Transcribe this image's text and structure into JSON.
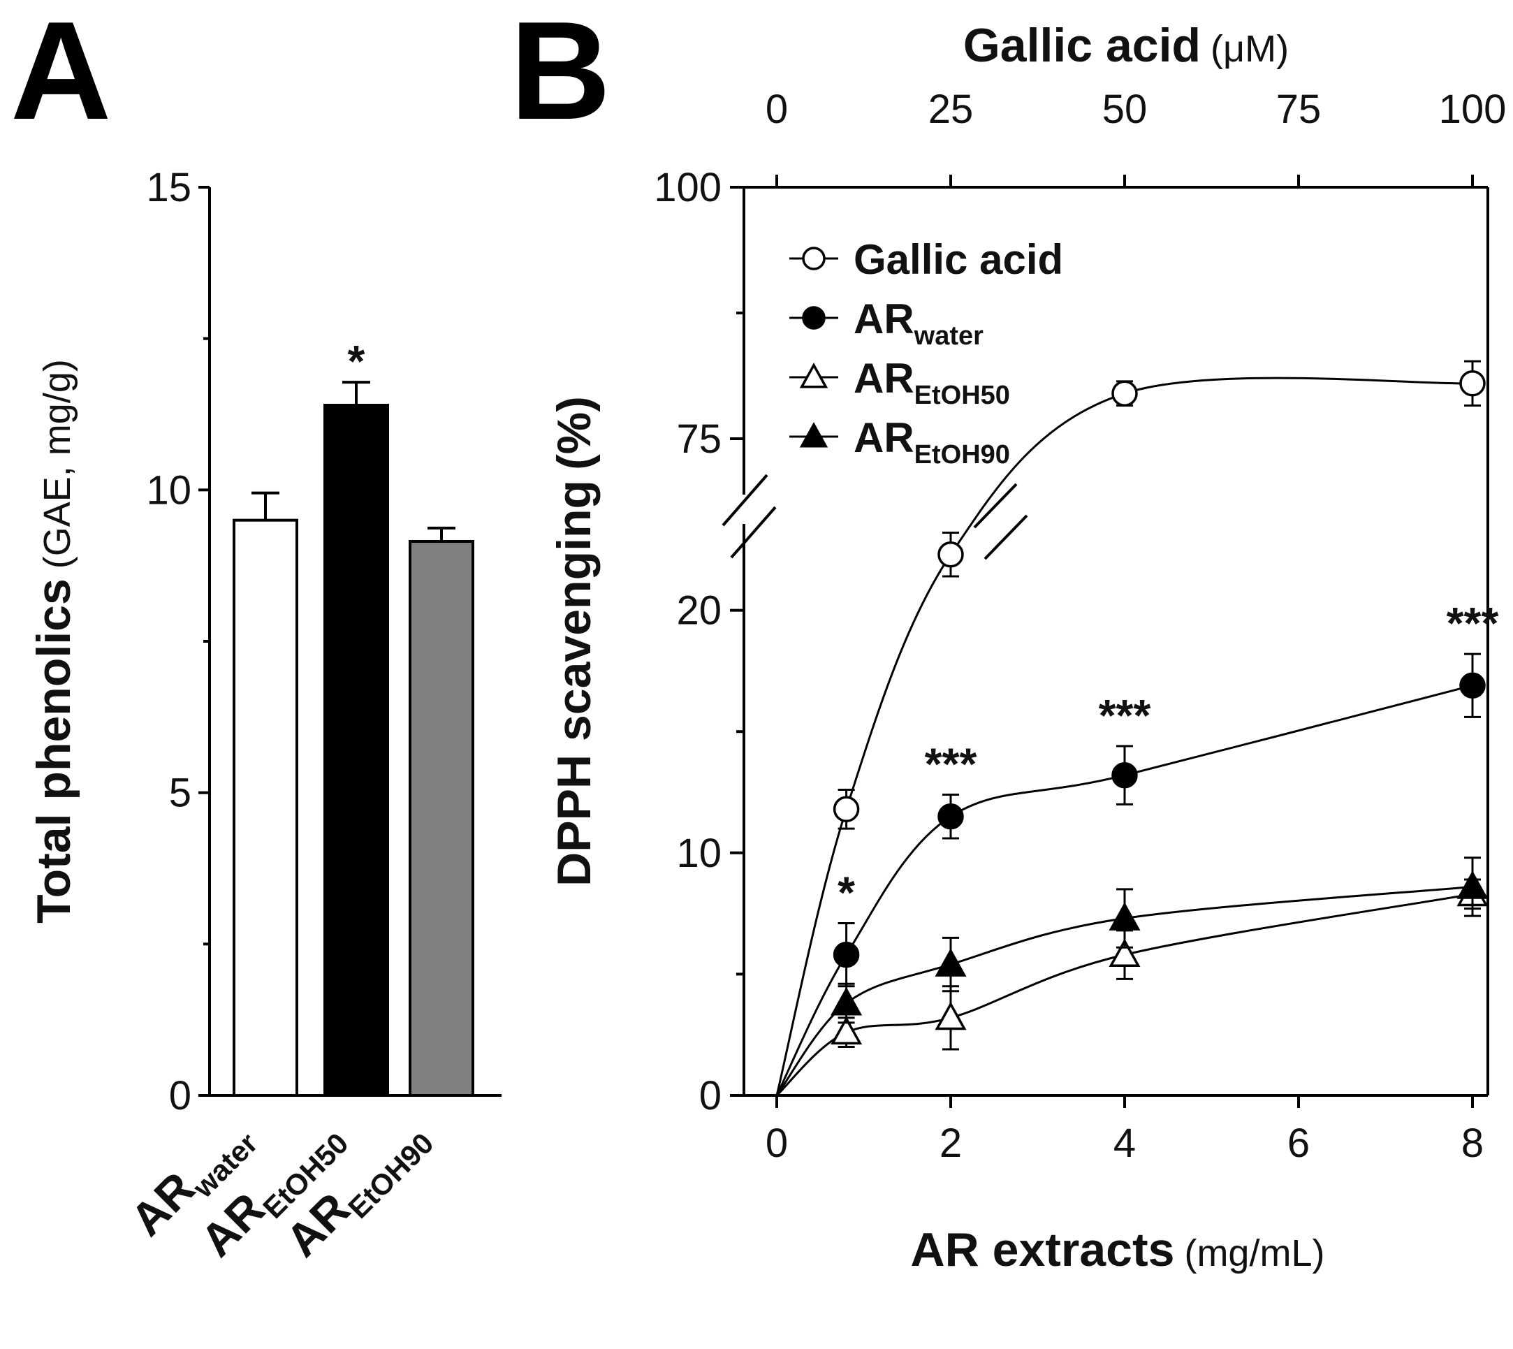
{
  "panel_a_label": "A",
  "panel_b_label": "B",
  "chart_data": [
    {
      "type": "bar",
      "panel": "A",
      "ylabel": "Total phenolics",
      "ylabel_unit": "(GAE, mg/g)",
      "ylim": [
        0,
        15
      ],
      "yticks": [
        "0",
        "5",
        "10",
        "15"
      ],
      "categories": [
        {
          "main": "AR",
          "sub": "water"
        },
        {
          "main": "AR",
          "sub": "EtOH50"
        },
        {
          "main": "AR",
          "sub": "EtOH90"
        }
      ],
      "values": [
        9.5,
        11.4,
        9.15
      ],
      "errors": [
        0.45,
        0.38,
        0.22
      ],
      "fills": [
        "#ffffff",
        "#000000",
        "#808080"
      ],
      "significance": [
        "",
        "*",
        ""
      ]
    },
    {
      "type": "scatter",
      "panel": "B",
      "ylabel": "DPPH scavenging",
      "ylabel_unit": "(%)",
      "xlabel": "AR extracts",
      "xlabel_unit": "(mg/mL)",
      "top_xlabel": "Gallic acid",
      "top_xlabel_unit": "(μM)",
      "x_ticks": [
        "0",
        "2",
        "4",
        "6",
        "8"
      ],
      "top_x_ticks": [
        "0",
        "25",
        "50",
        "75",
        "100"
      ],
      "y_ticks_lower": [
        "0",
        "10",
        "20"
      ],
      "y_ticks_upper": [
        "75",
        "100"
      ],
      "ylim_lower": [
        0,
        25
      ],
      "ylim_upper": [
        70,
        100
      ],
      "legend_position": "top-left",
      "series": [
        {
          "name": "Gallic acid",
          "legend_main": "Gallic acid",
          "legend_sub": "",
          "marker": "circle-open",
          "x_scale": "top",
          "x": [
            0,
            10,
            25,
            50,
            100
          ],
          "y": [
            0,
            11.8,
            22.3,
            79.5,
            80.5
          ],
          "err": [
            0,
            0.8,
            0.9,
            1.2,
            2.2
          ],
          "significance": [
            "",
            "",
            "",
            "",
            ""
          ]
        },
        {
          "name": "ARwater",
          "legend_main": "AR",
          "legend_sub": "water",
          "marker": "circle-filled",
          "x_scale": "bottom",
          "x": [
            0,
            0.8,
            2,
            4,
            8
          ],
          "y": [
            0,
            5.8,
            11.5,
            13.2,
            16.9
          ],
          "err": [
            0,
            1.3,
            0.9,
            1.2,
            1.3
          ],
          "significance": [
            "",
            "*",
            "***",
            "***",
            "***"
          ]
        },
        {
          "name": "AREtOH50",
          "legend_main": "AR",
          "legend_sub": "EtOH50",
          "marker": "triangle-open",
          "x_scale": "bottom",
          "x": [
            0,
            0.8,
            2,
            4,
            8
          ],
          "y": [
            0,
            2.6,
            3.2,
            5.8,
            8.3
          ],
          "err": [
            0,
            0.6,
            1.3,
            1.0,
            0.6
          ],
          "significance": [
            "",
            "",
            "",
            "",
            ""
          ]
        },
        {
          "name": "AREtOH90",
          "legend_main": "AR",
          "legend_sub": "EtOH90",
          "marker": "triangle-filled",
          "x_scale": "bottom",
          "x": [
            0,
            0.8,
            2,
            4,
            8
          ],
          "y": [
            0,
            3.8,
            5.4,
            7.3,
            8.6
          ],
          "err": [
            0,
            0.8,
            1.1,
            1.2,
            1.2
          ],
          "significance": [
            "",
            "",
            "",
            "",
            ""
          ]
        }
      ]
    }
  ]
}
